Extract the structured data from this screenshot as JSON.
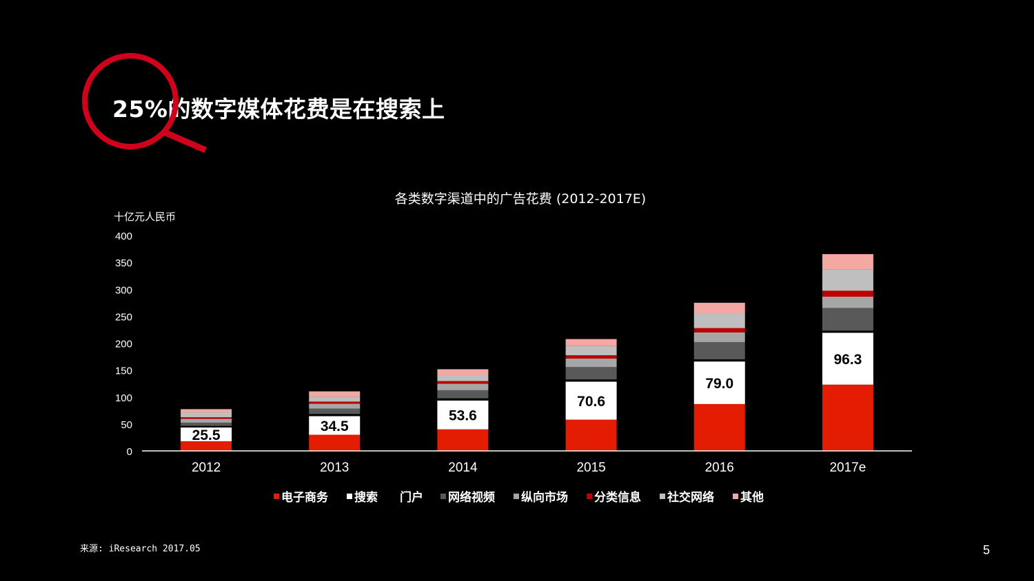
{
  "slide": {
    "title": "25%的数字媒体花费是在搜索上",
    "source": "来源: iResearch 2017.05",
    "page_number": "5",
    "accent_color": "#d0021b"
  },
  "chart_data": {
    "type": "bar",
    "stacked": true,
    "title": "各类数字渠道中的广告花费 (2012-2017E)",
    "ylabel": "十亿元人民币",
    "xlabel": "",
    "ylim": [
      0,
      400
    ],
    "yticks": [
      0,
      50,
      100,
      150,
      200,
      250,
      300,
      350,
      400
    ],
    "grid": false,
    "legend_position": "bottom",
    "categories": [
      "2012",
      "2013",
      "2014",
      "2015",
      "2016",
      "2017e"
    ],
    "series": [
      {
        "name": "电子商务",
        "color": "#e31c02",
        "values": [
          18,
          30,
          40,
          58,
          87,
          123
        ]
      },
      {
        "name": "搜索",
        "color": "#ffffff",
        "values": [
          25.5,
          34.5,
          53.6,
          70.6,
          79.0,
          96.3
        ],
        "show_labels": true
      },
      {
        "name": "门户",
        "color": "#000000",
        "values": [
          3,
          4,
          4,
          4,
          4,
          4
        ]
      },
      {
        "name": "网络视频",
        "color": "#595959",
        "values": [
          6,
          10,
          15,
          23,
          32,
          42
        ]
      },
      {
        "name": "纵向市场",
        "color": "#a6a6a6",
        "values": [
          7,
          9,
          12,
          16,
          18,
          21
        ]
      },
      {
        "name": "分类信息",
        "color": "#c00000",
        "values": [
          3,
          4,
          5,
          6,
          8,
          11
        ]
      },
      {
        "name": "社交网络",
        "color": "#bfbfbf",
        "values": [
          9,
          9,
          11,
          17,
          27,
          39
        ]
      },
      {
        "name": "其他",
        "color": "#f4a8a3",
        "values": [
          6,
          10,
          11,
          13,
          20,
          29
        ]
      }
    ]
  }
}
